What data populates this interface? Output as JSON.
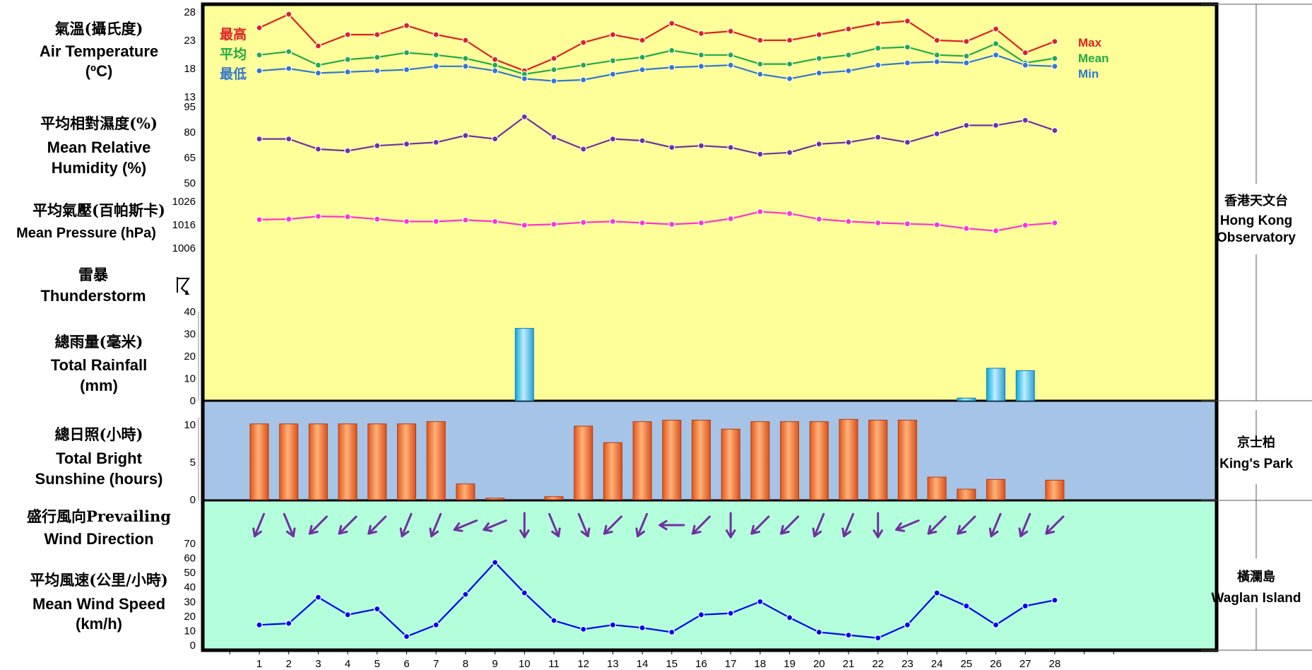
{
  "labels": {
    "temperature": {
      "zh": "氣溫(攝氏度)",
      "en": "Air Temperature",
      "unit": "(ºC)"
    },
    "humidity": {
      "zh": "平均相對濕度(%)",
      "en1": "Mean Relative",
      "en2": "Humidity  (%)"
    },
    "pressure": {
      "zh": "平均氣壓(百帕斯卡)",
      "en": "Mean Pressure (hPa)"
    },
    "thunderstorm": {
      "zh": "雷暴",
      "en": "Thunderstorm"
    },
    "rainfall": {
      "zh": "總雨量(毫米)",
      "en1": "Total Rainfall",
      "en2": "(mm)"
    },
    "sunshine": {
      "zh": "總日照(小時)",
      "en1": "Total Bright",
      "en2": "Sunshine  (hours)"
    },
    "wind_dir": {
      "zh": "盛行風向Prevailing",
      "en": "Wind Direction"
    },
    "wind_speed": {
      "zh": "平均風速(公里/小時)",
      "en1": "Mean Wind Speed",
      "en2": "(km/h)"
    }
  },
  "temp_legend": {
    "max_zh": "最高",
    "mean_zh": "平均",
    "min_zh": "最低",
    "max_en": "Max",
    "mean_en": "Mean",
    "min_en": "Min"
  },
  "stations": [
    {
      "zh": "香港天文台",
      "en1": "Hong Kong",
      "en2": "Observatory"
    },
    {
      "zh": "京士柏",
      "en1": "King's Park",
      "en2": ""
    },
    {
      "zh": "橫瀾島",
      "en1": "Waglan Island",
      "en2": ""
    }
  ],
  "colors": {
    "upper_bg": "#ffff99",
    "sunshine_bg": "#a6c3e8",
    "wind_bg": "#b3ffdb",
    "max": "#dd2222",
    "mean": "#22aa44",
    "min": "#3377cc",
    "humidity": "#7030a0",
    "pressure": "#ff33cc",
    "rain": "#33bbee",
    "sunshine": "#ff7722",
    "wind_arrow": "#7030a0",
    "wind_speed": "#0000ee"
  },
  "chart_data": [
    {
      "type": "line",
      "title": "Air Temperature",
      "x": [
        1,
        2,
        3,
        4,
        5,
        6,
        7,
        8,
        9,
        10,
        11,
        12,
        13,
        14,
        15,
        16,
        17,
        18,
        19,
        20,
        21,
        22,
        23,
        24,
        25,
        26,
        27,
        28
      ],
      "yticks": [
        13,
        18,
        23,
        28
      ],
      "ylim": [
        13,
        28
      ],
      "series": [
        {
          "name": "Max",
          "values": [
            25.2,
            27.6,
            22.0,
            24.0,
            24.0,
            25.6,
            24.0,
            23.0,
            19.6,
            17.6,
            19.8,
            22.6,
            24.0,
            23.0,
            26.0,
            24.2,
            24.6,
            23.0,
            23.0,
            24.0,
            25.0,
            26.0,
            26.4,
            23.0,
            22.8,
            25.0,
            20.8,
            22.8
          ]
        },
        {
          "name": "Mean",
          "values": [
            20.4,
            21.0,
            18.6,
            19.6,
            20.0,
            20.8,
            20.4,
            19.8,
            18.6,
            17.0,
            17.8,
            18.6,
            19.4,
            20.0,
            21.2,
            20.4,
            20.4,
            18.8,
            18.8,
            19.8,
            20.4,
            21.6,
            21.8,
            20.4,
            20.2,
            22.4,
            19.0,
            19.8
          ]
        },
        {
          "name": "Min",
          "values": [
            17.6,
            18.0,
            17.2,
            17.4,
            17.6,
            17.8,
            18.4,
            18.4,
            17.6,
            16.2,
            15.8,
            16.0,
            17.0,
            17.8,
            18.2,
            18.4,
            18.6,
            17.0,
            16.2,
            17.2,
            17.6,
            18.6,
            19.0,
            19.2,
            19.0,
            20.4,
            18.6,
            18.4
          ]
        }
      ]
    },
    {
      "type": "line",
      "title": "Mean Relative Humidity (%)",
      "x": [
        1,
        2,
        3,
        4,
        5,
        6,
        7,
        8,
        9,
        10,
        11,
        12,
        13,
        14,
        15,
        16,
        17,
        18,
        19,
        20,
        21,
        22,
        23,
        24,
        25,
        26,
        27,
        28
      ],
      "yticks": [
        50,
        65,
        80,
        95
      ],
      "ylim": [
        50,
        95
      ],
      "series": [
        {
          "name": "",
          "values": [
            76,
            76,
            70,
            69,
            72,
            73,
            74,
            78,
            76,
            89,
            77,
            70,
            76,
            75,
            71,
            72,
            71,
            67,
            68,
            73,
            74,
            77,
            74,
            79,
            84,
            84,
            87,
            81
          ]
        }
      ]
    },
    {
      "type": "line",
      "title": "Mean Pressure (hPa)",
      "x": [
        1,
        2,
        3,
        4,
        5,
        6,
        7,
        8,
        9,
        10,
        11,
        12,
        13,
        14,
        15,
        16,
        17,
        18,
        19,
        20,
        21,
        22,
        23,
        24,
        25,
        26,
        27,
        28
      ],
      "yticks": [
        1006,
        1016,
        1026
      ],
      "ylim": [
        1006,
        1026
      ],
      "series": [
        {
          "name": "",
          "values": [
            1018.2,
            1018.4,
            1019.6,
            1019.4,
            1018.4,
            1017.4,
            1017.4,
            1018.0,
            1017.4,
            1015.8,
            1016.2,
            1017.0,
            1017.4,
            1016.8,
            1016.2,
            1016.8,
            1018.6,
            1021.6,
            1020.8,
            1018.4,
            1017.4,
            1016.8,
            1016.4,
            1016.0,
            1014.4,
            1013.4,
            1015.8,
            1016.8
          ]
        }
      ]
    },
    {
      "type": "bar",
      "title": "Total Rainfall (mm)",
      "x": [
        1,
        2,
        3,
        4,
        5,
        6,
        7,
        8,
        9,
        10,
        11,
        12,
        13,
        14,
        15,
        16,
        17,
        18,
        19,
        20,
        21,
        22,
        23,
        24,
        25,
        26,
        27,
        28
      ],
      "yticks": [
        0,
        10,
        20,
        30,
        40
      ],
      "ylim": [
        0,
        40
      ],
      "values": [
        0,
        0,
        0,
        0,
        0,
        0,
        0,
        0,
        0,
        32.5,
        0,
        0,
        0,
        0,
        0,
        0,
        0,
        0,
        0,
        0,
        0,
        0,
        0,
        0,
        1.2,
        14.6,
        13.5,
        0
      ]
    },
    {
      "type": "bar",
      "title": "Total Bright Sunshine (hours)",
      "x": [
        1,
        2,
        3,
        4,
        5,
        6,
        7,
        8,
        9,
        10,
        11,
        12,
        13,
        14,
        15,
        16,
        17,
        18,
        19,
        20,
        21,
        22,
        23,
        24,
        25,
        26,
        27,
        28
      ],
      "yticks": [
        0,
        5,
        10
      ],
      "ylim": [
        0,
        13
      ],
      "values": [
        10.1,
        10.1,
        10.1,
        10.1,
        10.1,
        10.1,
        10.4,
        2.1,
        0.2,
        0,
        0.4,
        9.8,
        7.6,
        10.4,
        10.6,
        10.6,
        9.4,
        10.4,
        10.4,
        10.4,
        10.7,
        10.6,
        10.6,
        3.0,
        1.4,
        2.7,
        0,
        2.6
      ]
    },
    {
      "type": "scatter",
      "title": "Prevailing Wind Direction",
      "x": [
        1,
        2,
        3,
        4,
        5,
        6,
        7,
        8,
        9,
        10,
        11,
        12,
        13,
        14,
        15,
        16,
        17,
        18,
        19,
        20,
        21,
        22,
        23,
        24,
        25,
        26,
        27,
        28
      ],
      "values": [
        "NNE",
        "NNW",
        "NE",
        "NE",
        "NE",
        "NNE",
        "NNE",
        "ENE",
        "ENE",
        "N",
        "NNW",
        "NNW",
        "NE",
        "NNE",
        "E",
        "NE",
        "N",
        "NE",
        "NE",
        "NNE",
        "NNE",
        "N",
        "ENE",
        "NE",
        "NE",
        "NNE",
        "NNE",
        "NE"
      ]
    },
    {
      "type": "line",
      "title": "Mean Wind Speed (km/h)",
      "x": [
        1,
        2,
        3,
        4,
        5,
        6,
        7,
        8,
        9,
        10,
        11,
        12,
        13,
        14,
        15,
        16,
        17,
        18,
        19,
        20,
        21,
        22,
        23,
        24,
        25,
        26,
        27,
        28
      ],
      "yticks": [
        0,
        10,
        20,
        30,
        40,
        50,
        60,
        70
      ],
      "ylim": [
        0,
        70
      ],
      "series": [
        {
          "name": "",
          "values": [
            14,
            15,
            33,
            21,
            25,
            6,
            14,
            35,
            57,
            36,
            17,
            11,
            14,
            12,
            9,
            21,
            22,
            30,
            19,
            9,
            7,
            5,
            14,
            36,
            27,
            14,
            27,
            31
          ]
        }
      ]
    }
  ]
}
